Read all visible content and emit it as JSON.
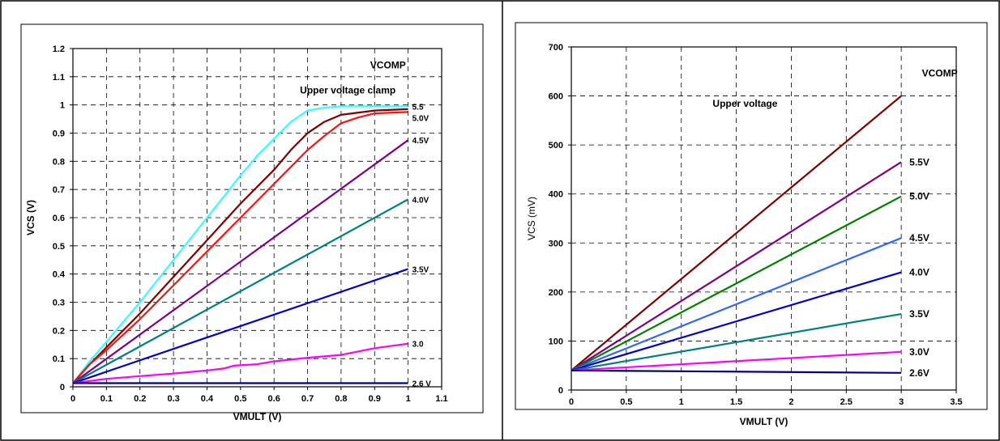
{
  "chart_data": [
    {
      "type": "line",
      "title": "",
      "xlabel": "VMULT (V)",
      "ylabel": "VCS (V)",
      "xlim": [
        0,
        1.1
      ],
      "ylim": [
        0,
        1.2
      ],
      "x_ticks": [
        0,
        0.1,
        0.2,
        0.3,
        0.4,
        0.5,
        0.6,
        0.7,
        0.8,
        0.9,
        1,
        1.1
      ],
      "x_tick_labels": [
        "0",
        "0.1",
        "0.2",
        "0.3",
        "0.4",
        "0.5",
        "0.6",
        "0.7",
        "0.8",
        "0.9",
        "1",
        "1.1"
      ],
      "y_ticks": [
        0,
        0.1,
        0.2,
        0.3,
        0.4,
        0.5,
        0.6,
        0.7,
        0.8,
        0.9,
        1,
        1.1,
        1.2
      ],
      "y_tick_labels": [
        "0",
        "0.1",
        "0.2",
        "0.3",
        "0.4",
        "0.5",
        "0.6",
        "0.7",
        "0.8",
        "0.9",
        "1",
        "1.1",
        "1.2"
      ],
      "grid": true,
      "annotations": [
        {
          "text": "VCOMP",
          "x": 0.94,
          "y": 1.13
        },
        {
          "text": "Upper voltage clamp",
          "x": 0.82,
          "y": 1.04
        }
      ],
      "series": [
        {
          "label": "5.5",
          "color": "#33ffff",
          "points": [
            [
              0,
              0.013
            ],
            [
              0.05,
              0.09
            ],
            [
              0.1,
              0.16
            ],
            [
              0.2,
              0.3
            ],
            [
              0.3,
              0.45
            ],
            [
              0.4,
              0.6
            ],
            [
              0.5,
              0.75
            ],
            [
              0.55,
              0.82
            ],
            [
              0.6,
              0.88
            ],
            [
              0.65,
              0.94
            ],
            [
              0.7,
              0.98
            ],
            [
              0.75,
              0.99
            ],
            [
              0.8,
              0.995
            ],
            [
              0.9,
              0.995
            ],
            [
              1,
              0.995
            ]
          ]
        },
        {
          "label": "5.0V",
          "color": "#800000",
          "points": [
            [
              0,
              0.013
            ],
            [
              0.05,
              0.08
            ],
            [
              0.1,
              0.14
            ],
            [
              0.2,
              0.26
            ],
            [
              0.3,
              0.39
            ],
            [
              0.4,
              0.52
            ],
            [
              0.5,
              0.65
            ],
            [
              0.55,
              0.71
            ],
            [
              0.6,
              0.77
            ],
            [
              0.65,
              0.84
            ],
            [
              0.7,
              0.9
            ],
            [
              0.75,
              0.94
            ],
            [
              0.8,
              0.965
            ],
            [
              0.9,
              0.98
            ],
            [
              1,
              0.985
            ]
          ]
        },
        {
          "label": "",
          "color": "#ff1111",
          "points": [
            [
              0,
              0.013
            ],
            [
              0.05,
              0.08
            ],
            [
              0.1,
              0.13
            ],
            [
              0.2,
              0.24
            ],
            [
              0.3,
              0.36
            ],
            [
              0.4,
              0.48
            ],
            [
              0.5,
              0.6
            ],
            [
              0.55,
              0.66
            ],
            [
              0.6,
              0.72
            ],
            [
              0.65,
              0.78
            ],
            [
              0.7,
              0.84
            ],
            [
              0.75,
              0.89
            ],
            [
              0.8,
              0.935
            ],
            [
              0.85,
              0.955
            ],
            [
              0.9,
              0.97
            ],
            [
              1,
              0.975
            ]
          ]
        },
        {
          "label": "4.5V",
          "color": "#800080",
          "points": [
            [
              0,
              0.013
            ],
            [
              1,
              0.875
            ]
          ]
        },
        {
          "label": "4.0V",
          "color": "#008080",
          "points": [
            [
              0,
              0.013
            ],
            [
              1,
              0.665
            ]
          ]
        },
        {
          "label": "3.5V",
          "color": "#0000cc",
          "points": [
            [
              0,
              0.013
            ],
            [
              1,
              0.418
            ]
          ]
        },
        {
          "label": "3.0",
          "color": "#ff00ff",
          "points": [
            [
              0,
              0.013
            ],
            [
              0.1,
              0.028
            ],
            [
              0.2,
              0.038
            ],
            [
              0.3,
              0.047
            ],
            [
              0.4,
              0.058
            ],
            [
              0.45,
              0.065
            ],
            [
              0.48,
              0.075
            ],
            [
              0.55,
              0.08
            ],
            [
              0.6,
              0.09
            ],
            [
              0.7,
              0.103
            ],
            [
              0.8,
              0.113
            ],
            [
              0.9,
              0.137
            ],
            [
              1,
              0.153
            ]
          ]
        },
        {
          "label": "2.6 V",
          "color": "#000080",
          "points": [
            [
              0,
              0.013
            ],
            [
              1,
              0.013
            ]
          ]
        }
      ]
    },
    {
      "type": "line",
      "title": "",
      "xlabel": "VMULT (V)",
      "ylabel": "VCS (mV)",
      "xlim": [
        0,
        3.5
      ],
      "ylim": [
        0,
        700
      ],
      "x_ticks": [
        0,
        0.5,
        1,
        1.5,
        2,
        2.5,
        3,
        3.5
      ],
      "x_tick_labels": [
        "0",
        "0.5",
        "1",
        "1.5",
        "2",
        "2.5",
        "3",
        "3.5"
      ],
      "y_ticks": [
        0,
        100,
        200,
        300,
        400,
        500,
        600,
        700
      ],
      "y_tick_labels": [
        "0",
        "100",
        "200",
        "300",
        "400",
        "500",
        "600",
        "700"
      ],
      "grid": true,
      "annotations": [
        {
          "text": "VCOMP",
          "x": 3.35,
          "y": 640
        },
        {
          "text": "Upper voltage",
          "x": 1.58,
          "y": 578
        }
      ],
      "series": [
        {
          "label": "",
          "color": "#800000",
          "points": [
            [
              0,
              40
            ],
            [
              3,
              600
            ]
          ]
        },
        {
          "label": "5.5V",
          "color": "#800080",
          "points": [
            [
              0,
              40
            ],
            [
              3,
              465
            ]
          ]
        },
        {
          "label": "5.0V",
          "color": "#008000",
          "points": [
            [
              0,
              40
            ],
            [
              3,
              395
            ]
          ]
        },
        {
          "label": "4.5V",
          "color": "#3366ff",
          "points": [
            [
              0,
              40
            ],
            [
              3,
              310
            ]
          ]
        },
        {
          "label": "4.0V",
          "color": "#0000cc",
          "points": [
            [
              0,
              40
            ],
            [
              3,
              240
            ]
          ]
        },
        {
          "label": "3.5V",
          "color": "#008080",
          "points": [
            [
              0,
              40
            ],
            [
              3,
              155
            ]
          ]
        },
        {
          "label": "3.0V",
          "color": "#ff00ff",
          "points": [
            [
              0,
              40
            ],
            [
              3,
              78
            ]
          ]
        },
        {
          "label": "2.6V",
          "color": "#000080",
          "points": [
            [
              0,
              40
            ],
            [
              3,
              35
            ]
          ]
        }
      ]
    }
  ]
}
